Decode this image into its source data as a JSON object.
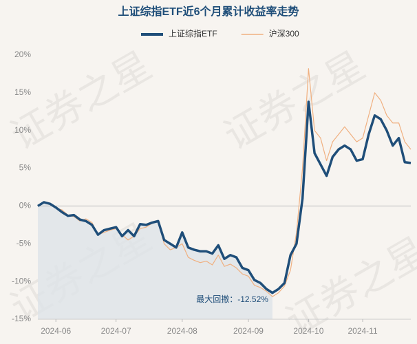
{
  "chart_data": {
    "type": "line",
    "title": "上证综指ETF近6个月累计收益率走势",
    "watermark": "证券之星",
    "annotation": "最大回撤：-12.52%",
    "categories": [
      null,
      null,
      null,
      "2024-06",
      null,
      null,
      null,
      null,
      null,
      null,
      null,
      null,
      null,
      "2024-07",
      null,
      null,
      null,
      null,
      null,
      null,
      null,
      null,
      null,
      null,
      "2024-08",
      null,
      null,
      null,
      null,
      null,
      null,
      null,
      null,
      null,
      null,
      "2024-09",
      null,
      null,
      null,
      null,
      null,
      null,
      null,
      null,
      null,
      "2024-10",
      null,
      null,
      null,
      null,
      null,
      null,
      null,
      null,
      "2024-11",
      null,
      null,
      null,
      null,
      null,
      null,
      null,
      null
    ],
    "series": [
      {
        "name": "上证综指ETF",
        "color": "#1f4e79",
        "values": [
          0,
          0.5,
          0.3,
          -0.2,
          -0.8,
          -1.3,
          -1.2,
          -1.8,
          -2.0,
          -2.5,
          -3.8,
          -3.2,
          -3.0,
          -2.8,
          -4.0,
          -3.2,
          -4.0,
          -2.4,
          -2.5,
          -2.2,
          -2.0,
          -4.5,
          -5.0,
          -5.5,
          -3.5,
          -5.5,
          -5.8,
          -6.0,
          -6.0,
          -6.3,
          -5.2,
          -7.0,
          -6.5,
          -6.8,
          -8.2,
          -8.5,
          -9.8,
          -10.2,
          -11.0,
          -11.5,
          -11.0,
          -10.2,
          -6.5,
          -5.0,
          1.0,
          13.8,
          7.0,
          5.5,
          4.0,
          6.5,
          7.5,
          8.0,
          7.5,
          6.0,
          6.2,
          9.5,
          12.0,
          11.5,
          10.0,
          8.0,
          9.0,
          5.8,
          5.7
        ]
      },
      {
        "name": "沪深300",
        "color": "#f0b080",
        "values": [
          0,
          0.6,
          0.2,
          -0.3,
          -0.5,
          -1.2,
          -1.4,
          -2.0,
          -1.7,
          -2.2,
          -3.8,
          -3.5,
          -3.2,
          -3.0,
          -3.8,
          -4.5,
          -4.0,
          -3.0,
          -2.8,
          -2.3,
          -2.0,
          -5.0,
          -5.8,
          -5.5,
          -5.0,
          -6.8,
          -7.2,
          -7.5,
          -7.3,
          -7.8,
          -6.5,
          -8.0,
          -7.7,
          -8.2,
          -9.0,
          -9.3,
          -10.5,
          -10.8,
          -11.3,
          -12.0,
          -11.5,
          -10.6,
          -8.5,
          -3.5,
          5.0,
          18.2,
          10.0,
          9.0,
          6.0,
          8.5,
          9.5,
          10.5,
          9.5,
          8.5,
          9.0,
          12.0,
          15.0,
          14.0,
          12.0,
          11.0,
          11.0,
          8.5,
          7.5
        ]
      }
    ],
    "ylim": [
      -15,
      20
    ],
    "yticks": [
      {
        "value": 20,
        "label": "20%"
      },
      {
        "value": 15,
        "label": "15%"
      },
      {
        "value": 10,
        "label": "10%"
      },
      {
        "value": 5,
        "label": "5%"
      },
      {
        "value": 0,
        "label": "0%"
      },
      {
        "value": -5,
        "label": "-5%"
      },
      {
        "value": -10,
        "label": "-10%"
      },
      {
        "value": -15,
        "label": "-15%"
      }
    ],
    "zero_line": true
  }
}
